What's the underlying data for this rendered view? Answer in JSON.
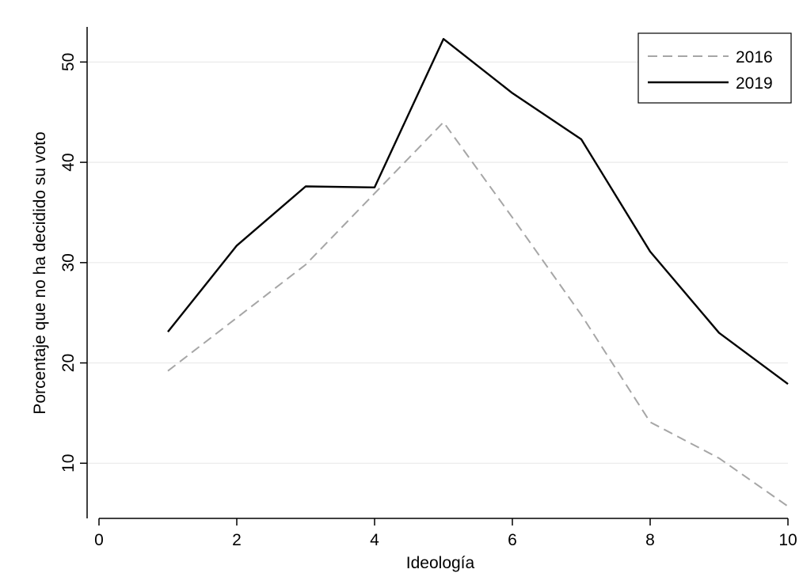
{
  "chart_data": {
    "type": "line",
    "xlabel": "Ideología",
    "ylabel": "Porcentaje que no ha decidido su voto",
    "xlim": [
      0,
      10
    ],
    "xticks": [
      0,
      2,
      4,
      6,
      8,
      10
    ],
    "ylim": [
      4.5,
      53.5
    ],
    "yticks": [
      10,
      20,
      30,
      40,
      50
    ],
    "grid": true,
    "legend_position": "top-right",
    "x": [
      1,
      2,
      3,
      4,
      5,
      6,
      7,
      8,
      9,
      10
    ],
    "series": [
      {
        "name": "2016",
        "style": "dashed",
        "color": "#a6a6a6",
        "values": [
          19.2,
          24.5,
          29.8,
          36.9,
          44.0,
          34.5,
          24.8,
          14.1,
          10.5,
          5.7
        ]
      },
      {
        "name": "2019",
        "style": "solid",
        "color": "#000000",
        "values": [
          23.1,
          31.7,
          37.6,
          37.5,
          52.3,
          46.9,
          42.3,
          31.1,
          23.0,
          17.9
        ]
      }
    ]
  }
}
